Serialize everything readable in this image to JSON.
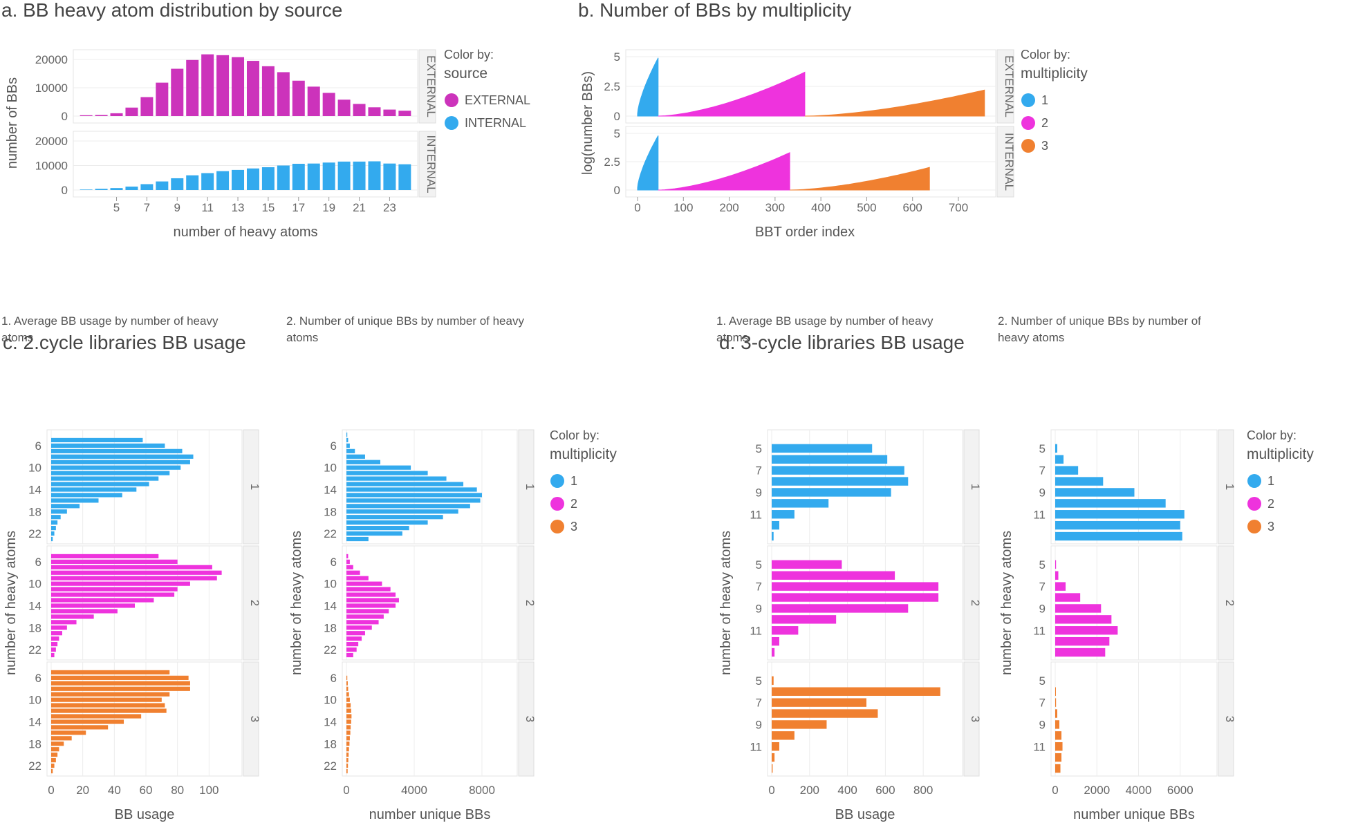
{
  "colors": {
    "external": "#cc33bb",
    "internal": "#33aaee",
    "m1": "#33aaee",
    "m2": "#ee33dd",
    "m3": "#f08030"
  },
  "chart_data": [
    {
      "id": "a",
      "type": "bar",
      "title": "a. BB heavy atom distribution by source",
      "xlabel": "number of heavy atoms",
      "ylabel": "number of BBs",
      "xticks": [
        "5",
        "7",
        "9",
        "11",
        "13",
        "15",
        "17",
        "19",
        "21",
        "23"
      ],
      "yticks": [
        "0",
        "10000",
        "20000"
      ],
      "legend_title_1": "Color by:",
      "legend_title_2": "source",
      "categories": [
        3,
        4,
        5,
        6,
        7,
        8,
        9,
        10,
        11,
        12,
        13,
        14,
        15,
        16,
        17,
        18,
        19,
        20,
        21,
        22,
        23,
        24
      ],
      "panels": [
        {
          "label": "EXTERNAL",
          "color_key": "external",
          "values": [
            300,
            400,
            1000,
            3000,
            6700,
            11800,
            16700,
            19800,
            21800,
            21500,
            20800,
            19500,
            17600,
            15500,
            12500,
            10400,
            8200,
            5800,
            4300,
            3100,
            2300,
            1900
          ]
        },
        {
          "label": "INTERNAL",
          "color_key": "internal",
          "values": [
            200,
            500,
            800,
            1400,
            2400,
            3500,
            4800,
            6000,
            6900,
            7700,
            8200,
            8800,
            9300,
            10000,
            10700,
            10800,
            11200,
            11600,
            11600,
            11700,
            10800,
            10500
          ]
        }
      ],
      "legend": [
        {
          "label": "EXTERNAL",
          "color_key": "external"
        },
        {
          "label": "INTERNAL",
          "color_key": "internal"
        }
      ]
    },
    {
      "id": "b",
      "type": "area",
      "title": "b. Number of BBs by multiplicity",
      "xlabel": "BBT order index",
      "ylabel": "log(number BBs)",
      "xticks": [
        "0",
        "100",
        "200",
        "300",
        "400",
        "500",
        "600",
        "700"
      ],
      "yticks": [
        "0",
        "2.5",
        "5"
      ],
      "legend_title_1": "Color by:",
      "legend_title_2": "multiplicity",
      "panels": [
        {
          "label": "EXTERNAL",
          "segments": [
            {
              "color_key": "m1",
              "x0": 0,
              "x1": 45,
              "ys": [
                0.2,
                4.9
              ],
              "power": 0.7
            },
            {
              "color_key": "m2",
              "x0": 45,
              "x1": 365,
              "ys": [
                0.0,
                3.7
              ],
              "power": 1.6
            },
            {
              "color_key": "m3",
              "x0": 365,
              "x1": 757,
              "ys": [
                0.0,
                2.2
              ],
              "power": 1.6
            }
          ]
        },
        {
          "label": "INTERNAL",
          "segments": [
            {
              "color_key": "m1",
              "x0": 0,
              "x1": 45,
              "ys": [
                0.2,
                4.8
              ],
              "power": 0.7
            },
            {
              "color_key": "m2",
              "x0": 45,
              "x1": 332,
              "ys": [
                0.0,
                3.3
              ],
              "power": 1.6
            },
            {
              "color_key": "m3",
              "x0": 332,
              "x1": 637,
              "ys": [
                0.0,
                2.0
              ],
              "power": 1.6
            }
          ]
        }
      ],
      "legend": [
        {
          "label": "1",
          "color_key": "m1"
        },
        {
          "label": "2",
          "color_key": "m2"
        },
        {
          "label": "3",
          "color_key": "m3"
        }
      ]
    },
    {
      "id": "c",
      "type": "bar",
      "title": "c. 2.cycle libraries BB usage",
      "legend_title_1": "Color by:",
      "legend_title_2": "multiplicity",
      "legend": [
        {
          "label": "1",
          "color_key": "m1"
        },
        {
          "label": "2",
          "color_key": "m2"
        },
        {
          "label": "3",
          "color_key": "m3"
        }
      ],
      "subplots": [
        {
          "subtitle": [
            "1. Average BB usage by number of heavy",
            "atoms"
          ],
          "xlabel": "BB usage",
          "ylabel": "number of heavy atoms",
          "xticks": [
            "0",
            "20",
            "40",
            "60",
            "80",
            "100"
          ],
          "xmax": 120,
          "yticks": [
            "6",
            "10",
            "14",
            "18",
            "22"
          ],
          "categories": [
            4,
            5,
            6,
            7,
            8,
            9,
            10,
            11,
            12,
            13,
            14,
            15,
            16,
            17,
            18,
            19,
            20,
            21,
            22,
            23
          ],
          "panels": [
            {
              "label": "1",
              "color_key": "m1",
              "values": [
                0,
                58,
                72,
                83,
                90,
                88,
                82,
                75,
                68,
                62,
                54,
                45,
                30,
                18,
                10,
                6,
                4,
                3,
                2,
                1
              ]
            },
            {
              "label": "2",
              "color_key": "m2",
              "values": [
                0,
                68,
                80,
                102,
                108,
                105,
                88,
                80,
                78,
                65,
                53,
                42,
                27,
                16,
                10,
                7,
                5,
                4,
                3,
                2
              ]
            },
            {
              "label": "3",
              "color_key": "m3",
              "values": [
                0,
                75,
                87,
                88,
                88,
                75,
                70,
                72,
                73,
                57,
                46,
                36,
                22,
                13,
                8,
                5,
                4,
                3,
                2,
                1
              ]
            }
          ]
        },
        {
          "subtitle": [
            "2. Number of unique BBs by number of heavy",
            "atoms"
          ],
          "xlabel": "number unique BBs",
          "ylabel": "number of heavy atoms",
          "xticks": [
            "0",
            "4000",
            "8000"
          ],
          "xmax": 10000,
          "yticks": [
            "6",
            "10",
            "14",
            "18",
            "22"
          ],
          "categories": [
            4,
            5,
            6,
            7,
            8,
            9,
            10,
            11,
            12,
            13,
            14,
            15,
            16,
            17,
            18,
            19,
            20,
            21,
            22,
            23
          ],
          "panels": [
            {
              "label": "1",
              "color_key": "m1",
              "values": [
                50,
                100,
                200,
                500,
                1100,
                2000,
                3800,
                4800,
                5900,
                6900,
                7700,
                8000,
                7900,
                7300,
                6600,
                5700,
                4800,
                3700,
                3300,
                1300
              ]
            },
            {
              "label": "2",
              "color_key": "m2",
              "values": [
                0,
                100,
                200,
                400,
                800,
                1300,
                2100,
                2600,
                2900,
                3100,
                2900,
                2500,
                2200,
                1900,
                1500,
                1100,
                900,
                700,
                600,
                400
              ]
            },
            {
              "label": "3",
              "color_key": "m3",
              "values": [
                0,
                0,
                50,
                80,
                100,
                150,
                200,
                250,
                280,
                300,
                280,
                250,
                230,
                200,
                180,
                150,
                130,
                110,
                90,
                70
              ]
            }
          ]
        }
      ]
    },
    {
      "id": "d",
      "type": "bar",
      "title": "d. 3-cycle libraries BB usage",
      "legend_title_1": "Color by:",
      "legend_title_2": "multiplicity",
      "legend": [
        {
          "label": "1",
          "color_key": "m1"
        },
        {
          "label": "2",
          "color_key": "m2"
        },
        {
          "label": "3",
          "color_key": "m3"
        }
      ],
      "subplots": [
        {
          "subtitle": [
            "1. Average BB usage by number of heavy",
            "atoms"
          ],
          "xlabel": "BB usage",
          "ylabel": "number of heavy atoms",
          "xticks": [
            "0",
            "200",
            "400",
            "600",
            "800"
          ],
          "xmax": 1000,
          "yticks": [
            "5",
            "7",
            "9",
            "11"
          ],
          "categories": [
            4,
            5,
            6,
            7,
            8,
            9,
            10,
            11,
            12,
            13
          ],
          "panels": [
            {
              "label": "1",
              "color_key": "m1",
              "values": [
                0,
                530,
                610,
                700,
                720,
                630,
                300,
                120,
                40,
                10
              ]
            },
            {
              "label": "2",
              "color_key": "m2",
              "values": [
                0,
                370,
                650,
                880,
                880,
                720,
                340,
                140,
                40,
                15
              ]
            },
            {
              "label": "3",
              "color_key": "m3",
              "values": [
                0,
                10,
                890,
                500,
                560,
                290,
                120,
                40,
                15,
                5
              ]
            }
          ]
        },
        {
          "subtitle": [
            "2. Number of unique BBs by number of",
            "heavy atoms"
          ],
          "xlabel": "number unique BBs",
          "ylabel": "number of heavy atoms",
          "xticks": [
            "0",
            "2000",
            "4000",
            "6000"
          ],
          "xmax": 7700,
          "yticks": [
            "5",
            "7",
            "9",
            "11"
          ],
          "categories": [
            4,
            5,
            6,
            7,
            8,
            9,
            10,
            11,
            12,
            13
          ],
          "panels": [
            {
              "label": "1",
              "color_key": "m1",
              "values": [
                0,
                100,
                400,
                1100,
                2300,
                3800,
                5300,
                6200,
                6000,
                6100
              ]
            },
            {
              "label": "2",
              "color_key": "m2",
              "values": [
                0,
                40,
                150,
                500,
                1200,
                2200,
                2700,
                3000,
                2600,
                2400
              ]
            },
            {
              "label": "3",
              "color_key": "m3",
              "values": [
                0,
                0,
                20,
                40,
                100,
                200,
                300,
                350,
                300,
                250
              ]
            }
          ]
        }
      ]
    }
  ]
}
